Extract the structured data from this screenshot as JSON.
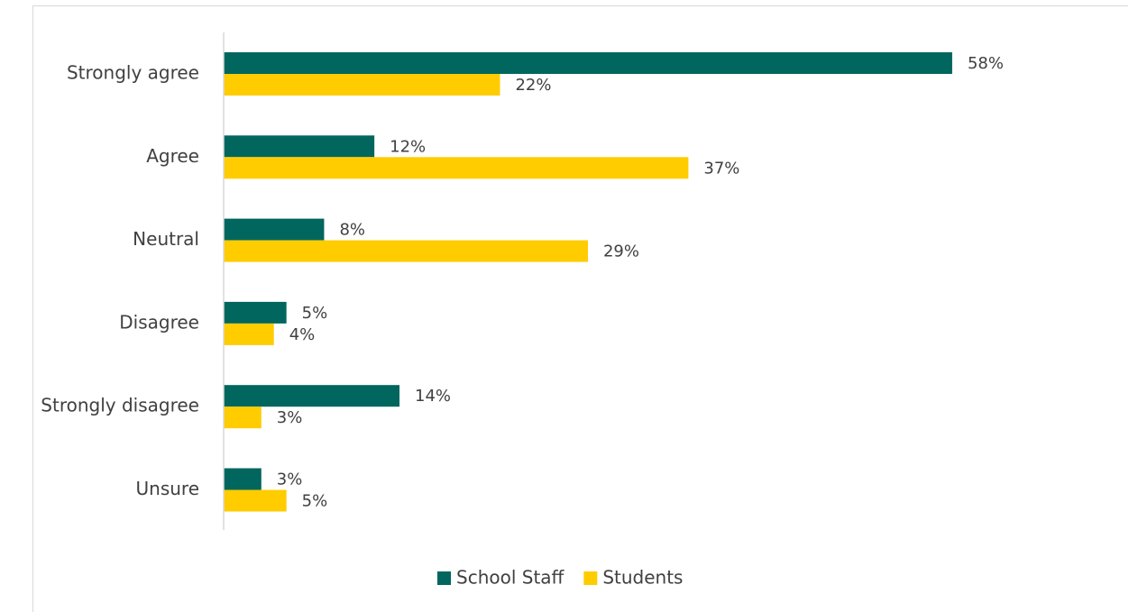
{
  "chart_data": {
    "type": "bar",
    "orientation": "horizontal",
    "categories": [
      "Strongly agree",
      "Agree",
      "Neutral",
      "Disagree",
      "Strongly disagree",
      "Unsure"
    ],
    "series": [
      {
        "name": "School Staff",
        "color": "#00665e",
        "values": [
          58,
          12,
          8,
          5,
          14,
          3
        ]
      },
      {
        "name": "Students",
        "color": "#ffcc00",
        "values": [
          22,
          37,
          29,
          4,
          3,
          5
        ]
      }
    ],
    "value_suffix": "%",
    "title": "",
    "xlabel": "",
    "ylabel": "",
    "xlim": [
      0,
      60
    ],
    "grid": false,
    "legend_position": "bottom"
  }
}
